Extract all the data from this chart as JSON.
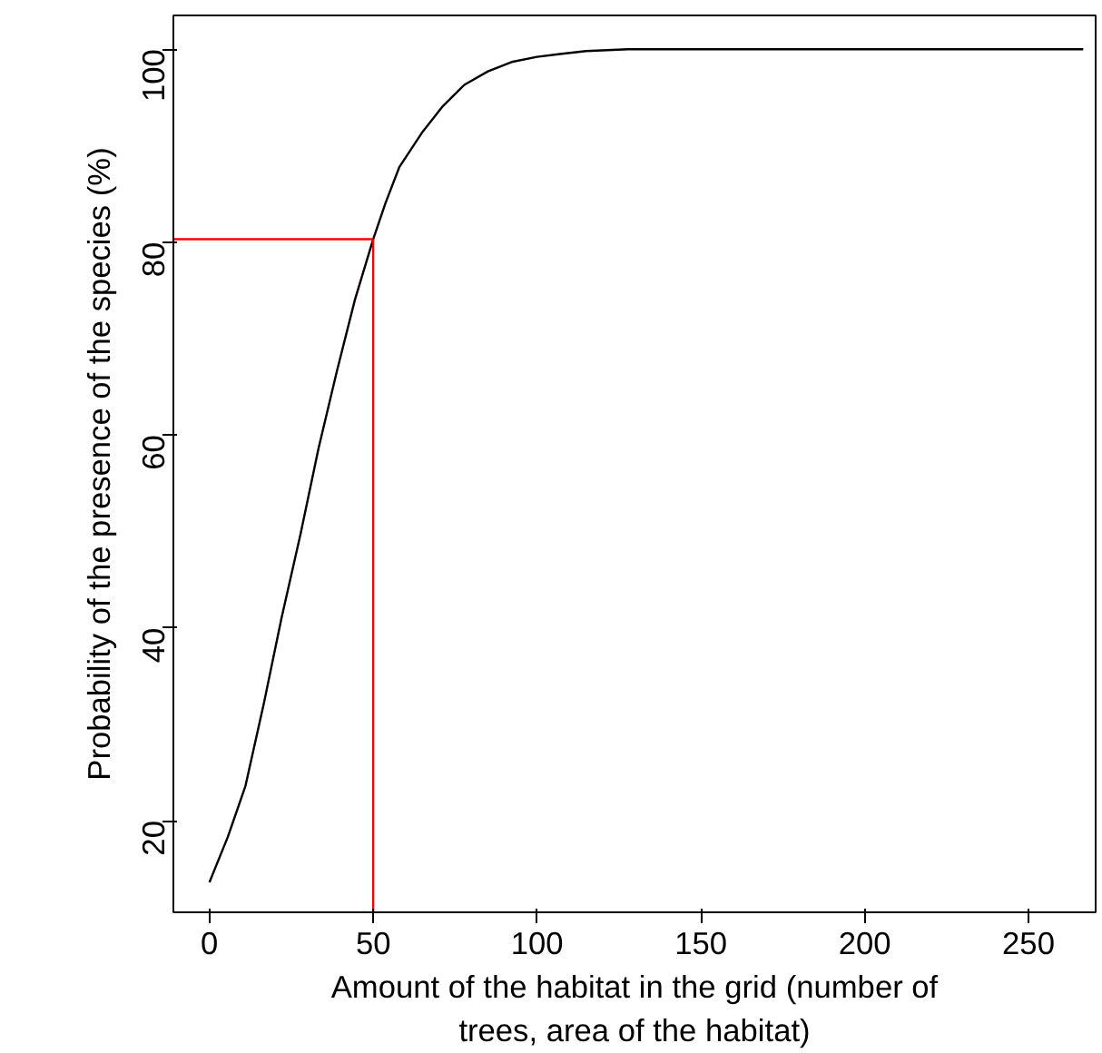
{
  "chart_data": {
    "type": "line",
    "xlabel": "Amount of the habitat in the grid (number of\ntrees, area of the habitat)",
    "ylabel": "Probability of the presence of the species (%)",
    "x": [
      0,
      5.6,
      11,
      16.7,
      22,
      27.8,
      33.3,
      38.9,
      44.4,
      50,
      53.7,
      58,
      64.8,
      71,
      77.8,
      85,
      92.6,
      100,
      107,
      115,
      127.8,
      150,
      200,
      266.7
    ],
    "series": [
      {
        "color": "#000000",
        "values": [
          13.6,
          18.3,
          23.6,
          32.3,
          41,
          49.7,
          58.6,
          66.6,
          74,
          80.3,
          84,
          87.8,
          91.3,
          94,
          96.3,
          97.7,
          98.7,
          99.2,
          99.5,
          99.8,
          100,
          100,
          100,
          100
        ]
      }
    ],
    "xlim": [
      -11,
      270.5
    ],
    "ylim": [
      10.5,
      103.5
    ],
    "xticks": [
      0,
      50,
      100,
      150,
      200,
      250
    ],
    "yticks": [
      20,
      40,
      60,
      80,
      100
    ],
    "ref_lines": [
      {
        "axis": "x",
        "value": 50,
        "color": "#ff0000"
      },
      {
        "axis": "y",
        "value": 80.3,
        "color": "#ff0000"
      }
    ],
    "grid": false,
    "line_style": "solid"
  }
}
